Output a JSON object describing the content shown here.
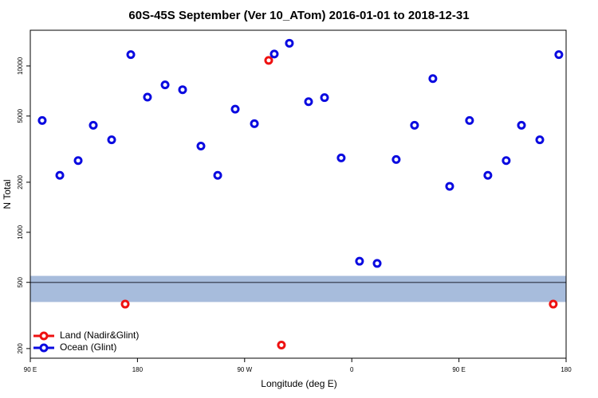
{
  "chart_data": {
    "type": "scatter",
    "title": "60S-45S September (Ver 10_ATom)   2016-01-01 to 2018-12-31",
    "x_label": "Longitude (deg E)",
    "y_label": "N Total",
    "xlim": [
      90,
      540
    ],
    "ylim": [
      175,
      16400
    ],
    "log_y": true,
    "xticks": [
      {
        "value": 90,
        "label": "90 E"
      },
      180,
      {
        "value": 270,
        "label": "90 W"
      },
      {
        "value": 360,
        "label": "0"
      },
      {
        "value": 450,
        "label": "90 E"
      },
      {
        "value": 540,
        "label": "180"
      }
    ],
    "yticks": [
      200,
      500,
      1000,
      2000,
      5000,
      10000
    ],
    "reference_line": 500,
    "band": [
      381,
      547
    ],
    "band_color": "#a7bcdc",
    "line_color": "#4a5468",
    "legend": "bottom-left",
    "series": [
      {
        "name": "Land (Nadir&Glint)",
        "color": "#ee1111",
        "x": [
          169.7,
          290.2,
          300.9,
          529.2
        ],
        "values": [
          370,
          10800,
          210,
          370
        ]
      },
      {
        "name": "Ocean (Glint)",
        "color": "#0a0ae0",
        "x": [
          100,
          114.8,
          130.2,
          142.9,
          158.3,
          174.4,
          188.4,
          203.2,
          217.9,
          233.3,
          247.4,
          262.1,
          278.2,
          294.9,
          307.6,
          323.7,
          337.1,
          351.1,
          366.5,
          381.3,
          397.3,
          412.7,
          428.1,
          442.2,
          458.9,
          474.3,
          489.7,
          502.5,
          517.9,
          533.9
        ],
        "values": [
          4700,
          2200,
          2700,
          4400,
          3600,
          11700,
          6500,
          7700,
          7200,
          3300,
          2200,
          5500,
          4500,
          11800,
          13700,
          6100,
          6450,
          2800,
          670,
          650,
          2740,
          4400,
          8400,
          1890,
          4700,
          2200,
          2700,
          4400,
          3600,
          11700
        ]
      }
    ]
  }
}
